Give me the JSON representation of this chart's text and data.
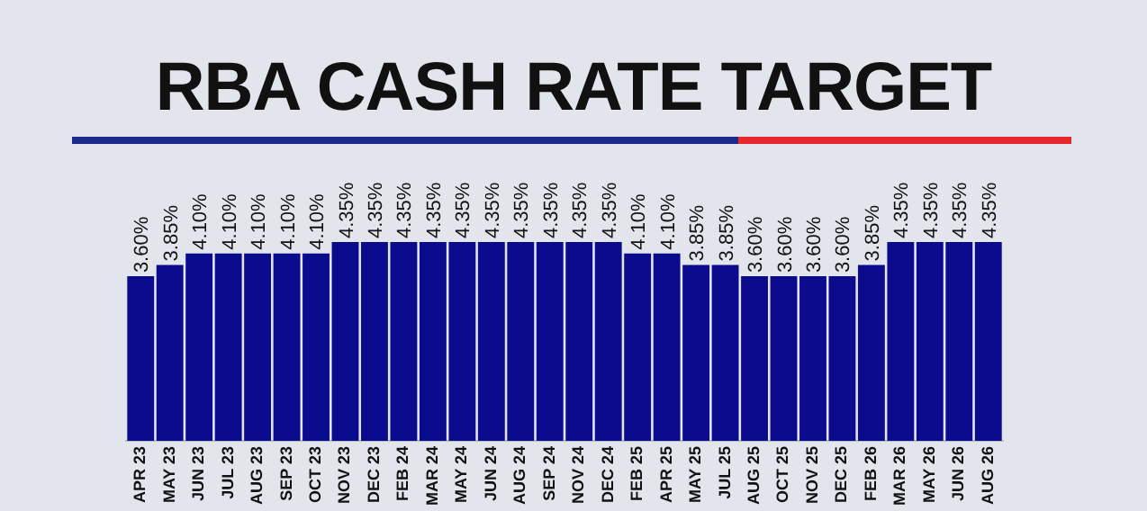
{
  "chart_data": {
    "type": "bar",
    "title": "RBA CASH RATE TARGET",
    "categories": [
      "APR 23",
      "MAY 23",
      "JUN 23",
      "JUL 23",
      "AUG 23",
      "SEP 23",
      "OCT 23",
      "NOV 23",
      "DEC 23",
      "FEB 24",
      "MAR 24",
      "MAY 24",
      "JUN 24",
      "AUG 24",
      "SEP 24",
      "NOV 24",
      "DEC 24",
      "FEB 25",
      "APR 25",
      "MAY 25",
      "JUL 25",
      "AUG 25",
      "OCT 25",
      "NOV 25",
      "DEC 25",
      "FEB 26",
      "MAR 26",
      "MAY 26",
      "JUN 26",
      "AUG 26"
    ],
    "values": [
      3.6,
      3.85,
      4.1,
      4.1,
      4.1,
      4.1,
      4.1,
      4.35,
      4.35,
      4.35,
      4.35,
      4.35,
      4.35,
      4.35,
      4.35,
      4.35,
      4.35,
      4.1,
      4.1,
      3.85,
      3.85,
      3.6,
      3.6,
      3.6,
      3.6,
      3.85,
      4.35,
      4.35,
      4.35,
      4.35
    ],
    "value_labels": [
      "3.60%",
      "3.85%",
      "4.10%",
      "4.10%",
      "4.10%",
      "4.10%",
      "4.10%",
      "4.35%",
      "4.35%",
      "4.35%",
      "4.35%",
      "4.35%",
      "4.35%",
      "4.35%",
      "4.35%",
      "4.35%",
      "4.35%",
      "4.10%",
      "4.10%",
      "3.85%",
      "3.85%",
      "3.60%",
      "3.60%",
      "3.60%",
      "3.60%",
      "3.85%",
      "4.35%",
      "4.35%",
      "4.35%",
      "4.35%"
    ],
    "color": "#0b0b8e",
    "tick_labels": "x",
    "grid": false,
    "legend": false
  }
}
